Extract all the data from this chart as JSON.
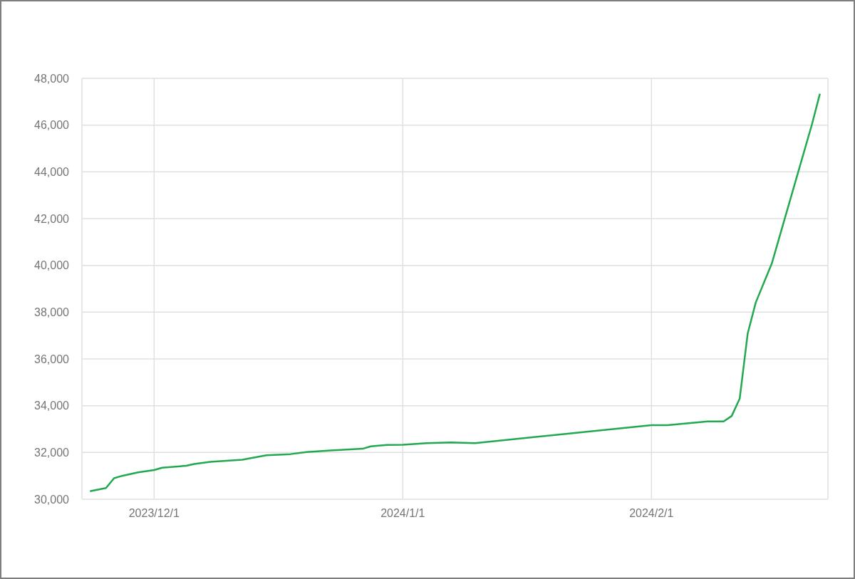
{
  "chart_data": {
    "type": "line",
    "x": [
      "2023-11-23",
      "2023-11-25",
      "2023-11-26",
      "2023-11-27",
      "2023-11-29",
      "2023-12-01",
      "2023-12-02",
      "2023-12-05",
      "2023-12-06",
      "2023-12-08",
      "2023-12-12",
      "2023-12-15",
      "2023-12-18",
      "2023-12-20",
      "2023-12-23",
      "2023-12-27",
      "2023-12-28",
      "2023-12-30",
      "2024-01-01",
      "2024-01-02",
      "2024-01-04",
      "2024-01-07",
      "2024-01-10",
      "2024-02-01",
      "2024-02-03",
      "2024-02-08",
      "2024-02-10",
      "2024-02-11",
      "2024-02-12",
      "2024-02-13",
      "2024-02-14",
      "2024-02-16",
      "2024-02-21",
      "2024-02-22"
    ],
    "series": [
      {
        "color": "#22a94f",
        "values": [
          30340,
          30480,
          30900,
          31000,
          31150,
          31250,
          31350,
          31430,
          31510,
          31600,
          31690,
          31880,
          31930,
          32020,
          32090,
          32160,
          32260,
          32320,
          32330,
          32350,
          32400,
          32430,
          32400,
          33170,
          33170,
          33330,
          33330,
          33560,
          34300,
          37090,
          38410,
          40080,
          46020,
          47340
        ]
      }
    ],
    "xlim": [
      "2023-11-22",
      "2024-02-23"
    ],
    "xticks": [
      {
        "value": "2023-12-01",
        "label": "2023/12/1"
      },
      {
        "value": "2024-01-01",
        "label": "2024/1/1"
      },
      {
        "value": "2024-02-01",
        "label": "2024/2/1"
      }
    ],
    "ylim": [
      30000,
      48000
    ],
    "yticks": [
      {
        "value": 30000,
        "label": "30,000"
      },
      {
        "value": 32000,
        "label": "32,000"
      },
      {
        "value": 34000,
        "label": "34,000"
      },
      {
        "value": 36000,
        "label": "36,000"
      },
      {
        "value": 38000,
        "label": "38,000"
      },
      {
        "value": 40000,
        "label": "40,000"
      },
      {
        "value": 42000,
        "label": "42,000"
      },
      {
        "value": 44000,
        "label": "44,000"
      },
      {
        "value": 46000,
        "label": "46,000"
      },
      {
        "value": 48000,
        "label": "48,000"
      }
    ],
    "grid": true,
    "line_style": "solid"
  }
}
